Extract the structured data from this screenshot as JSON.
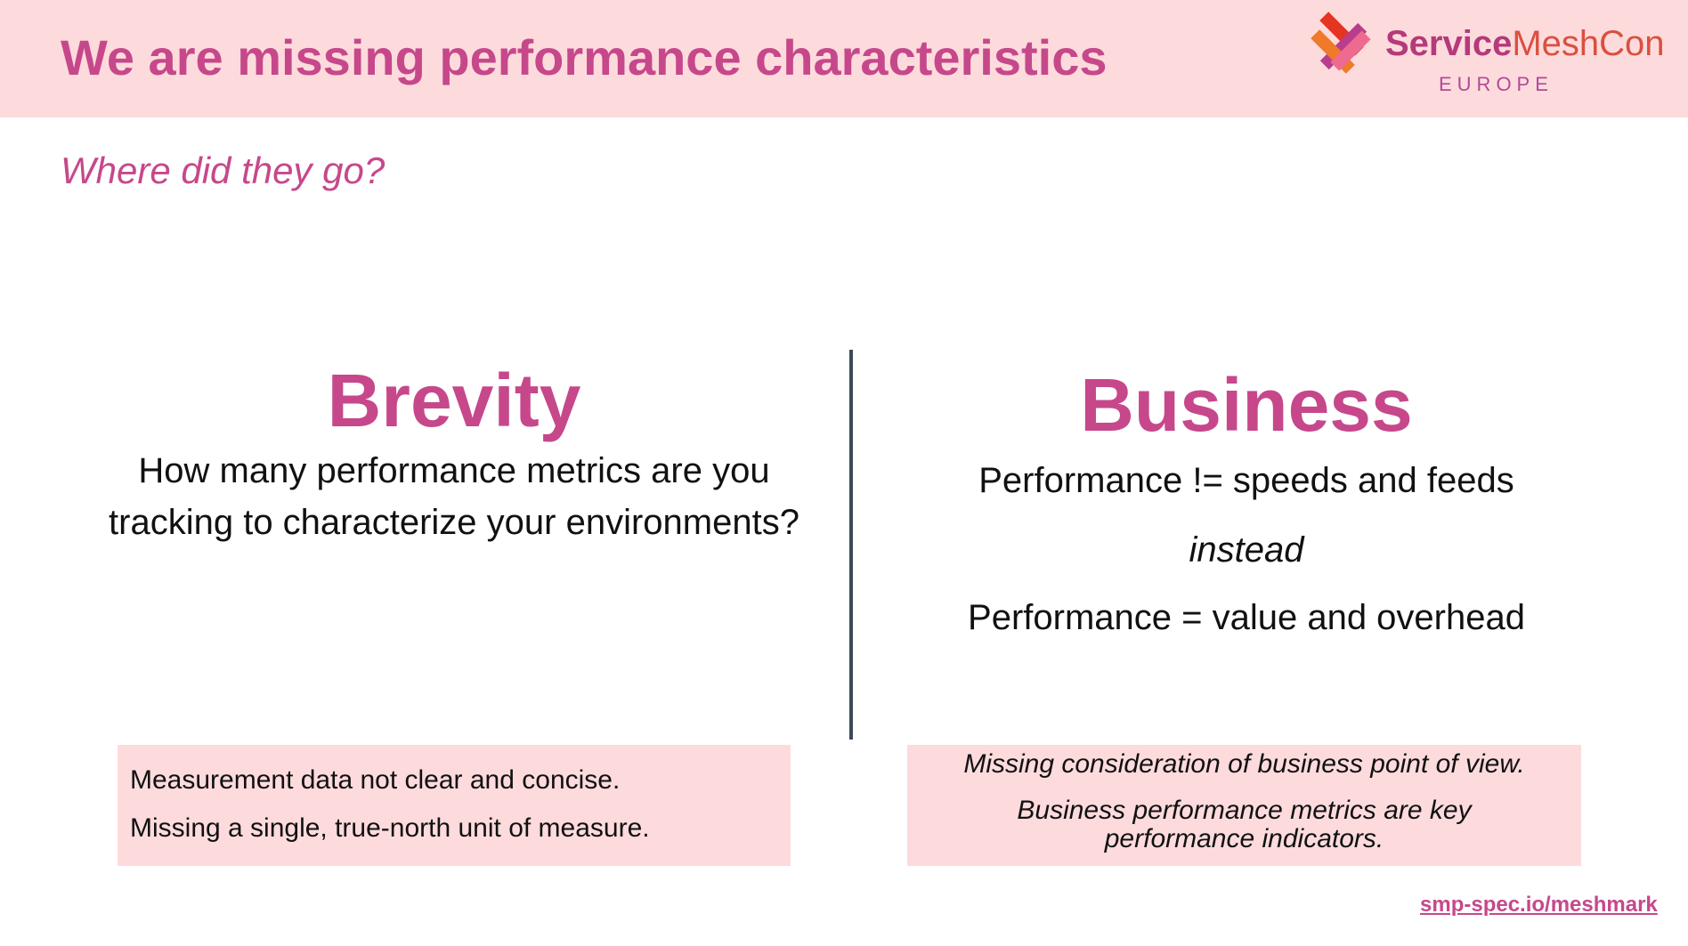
{
  "header": {
    "title": "We are missing performance characteristics",
    "logo_brand_bold": "Service",
    "logo_brand_light": "MeshCon",
    "logo_region": "EUROPE"
  },
  "subtitle": "Where did they go?",
  "left": {
    "heading": "Brevity",
    "body": "How many performance metrics are you tracking to characterize your environments?",
    "notes": [
      "Measurement data not clear and concise.",
      "Missing a single, true-north unit of measure."
    ]
  },
  "right": {
    "heading": "Business",
    "line1": "Performance != speeds and feeds",
    "line2": "instead",
    "line3": "Performance = value and overhead",
    "notes": [
      "Missing consideration of business point of view.",
      "Business performance metrics are key performance indicators."
    ]
  },
  "footer": {
    "link": "smp-spec.io/meshmark"
  },
  "colors": {
    "accent": "#c6488b",
    "header_bg": "#fddbdd",
    "divider": "#3e4a58"
  }
}
